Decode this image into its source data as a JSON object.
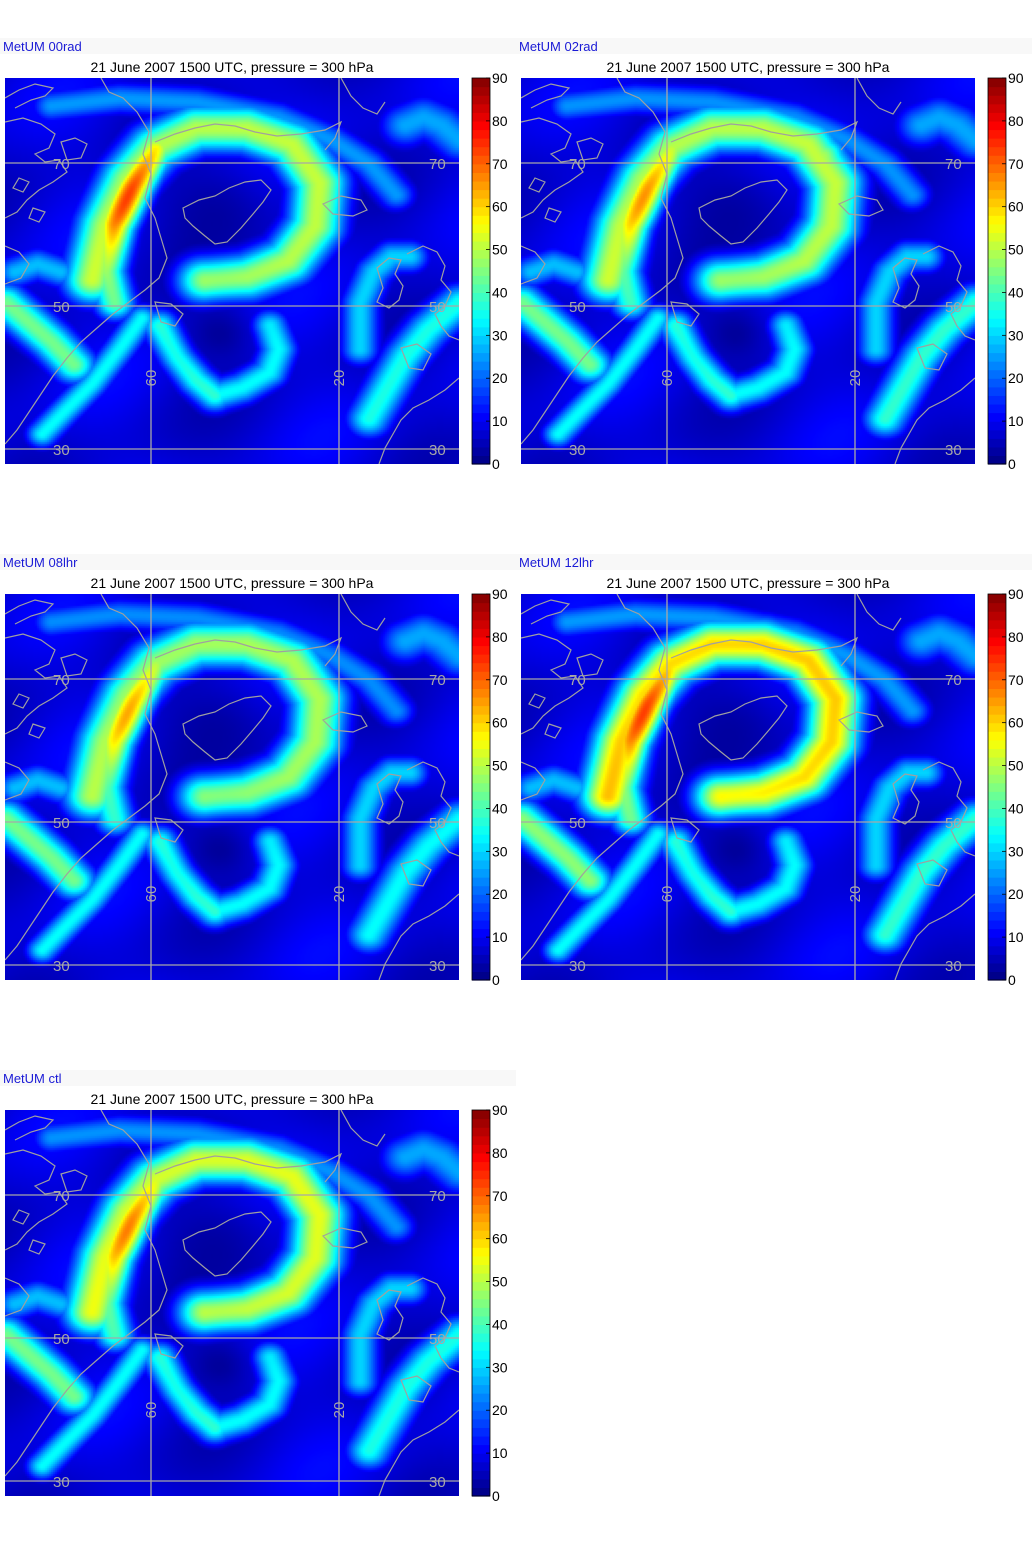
{
  "colors": {
    "grid": "#a8a8a8",
    "coast": "#a0a0a0",
    "model_label": "#1a1ad6",
    "colormap": "jet"
  },
  "panels": [
    {
      "model_label": "MetUM 00rad",
      "title": "21 June 2007 1500 UTC, pressure = 300 hPa",
      "grid_labels": {
        "lat70": "70",
        "lat50": "50",
        "lat30": "30",
        "lon60": "60",
        "lon20": "20"
      }
    },
    {
      "model_label": "MetUM 02rad",
      "title": "21 June 2007 1500 UTC, pressure = 300 hPa",
      "grid_labels": {
        "lat70": "70",
        "lat50": "50",
        "lat30": "30",
        "lon60": "60",
        "lon20": "20"
      }
    },
    {
      "model_label": "MetUM 08lhr",
      "title": "21 June 2007 1500 UTC, pressure = 300 hPa",
      "grid_labels": {
        "lat70": "70",
        "lat50": "50",
        "lat30": "30",
        "lon60": "60",
        "lon20": "20"
      }
    },
    {
      "model_label": "MetUM 12lhr",
      "title": "21 June 2007 1500 UTC, pressure = 300 hPa",
      "grid_labels": {
        "lat70": "70",
        "lat50": "50",
        "lat30": "30",
        "lon60": "60",
        "lon20": "20"
      }
    },
    {
      "model_label": "MetUM ctl",
      "title": "21 June 2007 1500 UTC, pressure = 300 hPa",
      "grid_labels": {
        "lat70": "70",
        "lat50": "50",
        "lat30": "30",
        "lon60": "60",
        "lon20": "20"
      }
    }
  ],
  "chart_data": [
    {
      "type": "heatmap",
      "title": "21 June 2007 1500 UTC, pressure = 300 hPa",
      "model": "MetUM 00rad",
      "colorbar": {
        "min": 0,
        "max": 90,
        "ticks": [
          0,
          10,
          20,
          30,
          40,
          50,
          60,
          70,
          80,
          90
        ]
      },
      "max_value": 78,
      "jet_arc": 52,
      "north_band": 45,
      "east_ring": 45,
      "west_jet": 44,
      "south_v": 38,
      "east_jet": 36
    },
    {
      "type": "heatmap",
      "title": "21 June 2007 1500 UTC, pressure = 300 hPa",
      "model": "MetUM 02rad",
      "colorbar": {
        "min": 0,
        "max": 90,
        "ticks": [
          0,
          10,
          20,
          30,
          40,
          50,
          60,
          70,
          80,
          90
        ]
      },
      "max_value": 70,
      "jet_arc": 52,
      "north_band": 44,
      "east_ring": 50,
      "west_jet": 44,
      "south_v": 38,
      "east_jet": 38
    },
    {
      "type": "heatmap",
      "title": "21 June 2007 1500 UTC, pressure = 300 hPa",
      "model": "MetUM 08lhr",
      "colorbar": {
        "min": 0,
        "max": 90,
        "ticks": [
          0,
          10,
          20,
          30,
          40,
          50,
          60,
          70,
          80,
          90
        ]
      },
      "max_value": 68,
      "jet_arc": 50,
      "north_band": 43,
      "east_ring": 45,
      "west_jet": 44,
      "south_v": 38,
      "east_jet": 34
    },
    {
      "type": "heatmap",
      "title": "21 June 2007 1500 UTC, pressure = 300 hPa",
      "model": "MetUM 12lhr",
      "colorbar": {
        "min": 0,
        "max": 90,
        "ticks": [
          0,
          10,
          20,
          30,
          40,
          50,
          60,
          70,
          80,
          90
        ]
      },
      "max_value": 78,
      "jet_arc": 62,
      "north_band": 45,
      "east_ring": 52,
      "west_jet": 46,
      "south_v": 38,
      "east_jet": 38
    },
    {
      "type": "heatmap",
      "title": "21 June 2007 1500 UTC, pressure = 300 hPa",
      "model": "MetUM ctl",
      "colorbar": {
        "min": 0,
        "max": 90,
        "ticks": [
          0,
          10,
          20,
          30,
          40,
          50,
          60,
          70,
          80,
          90
        ]
      },
      "max_value": 72,
      "jet_arc": 55,
      "north_band": 44,
      "east_ring": 48,
      "west_jet": 44,
      "south_v": 38,
      "east_jet": 36
    }
  ]
}
